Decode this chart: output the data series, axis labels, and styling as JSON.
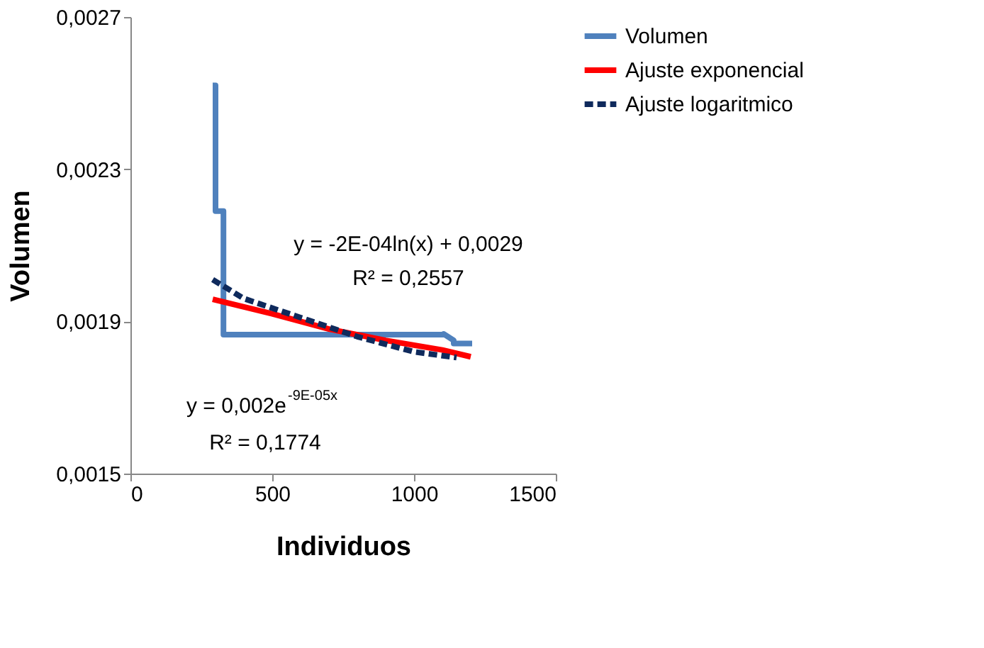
{
  "chart_data": {
    "type": "line",
    "xlabel": "Individuos",
    "ylabel": "Volumen",
    "xlim": [
      0,
      1500
    ],
    "xticks": [
      0,
      500,
      1000,
      1500
    ],
    "ylim": [
      0.0015,
      0.0027
    ],
    "yticks": [
      {
        "value": 0.0015,
        "label": "0,0015"
      },
      {
        "value": 0.0019,
        "label": "0,0019"
      },
      {
        "value": 0.0023,
        "label": "0,0023"
      },
      {
        "value": 0.0027,
        "label": "0,0027"
      }
    ],
    "grid": false,
    "legend": "right",
    "marker": "none",
    "series": [
      {
        "name": "Volumen",
        "color": "#4f81bd",
        "line_style": "solid",
        "x": [
          290,
          300,
          300,
          328,
          328,
          1105,
          1105,
          1140,
          1140,
          1205
        ],
        "values": [
          0.00252,
          0.00252,
          0.00219,
          0.00219,
          0.001865,
          0.001865,
          0.001867,
          0.00185,
          0.001842,
          0.001842
        ]
      },
      {
        "name": "Ajuste exponencial",
        "color": "#ff0000",
        "line_style": "solid",
        "x": [
          290,
          500,
          700,
          900,
          1100,
          1200
        ],
        "values": [
          0.001958,
          0.00192,
          0.00188,
          0.00185,
          0.001825,
          0.001807
        ]
      },
      {
        "name": "Ajuste logaritmico",
        "color": "#0f2a5c",
        "line_style": "dashed",
        "x": [
          290,
          400,
          600,
          800,
          1000,
          1150
        ],
        "values": [
          0.00201,
          0.00196,
          0.00191,
          0.00186,
          0.00182,
          0.001805
        ]
      }
    ],
    "annotations": [
      "y = -2E-04ln(x) + 0,0029",
      "R² = 0,2557",
      "y = 0,002e$^{-9E-05x}$",
      "R² = 0,1774"
    ]
  }
}
